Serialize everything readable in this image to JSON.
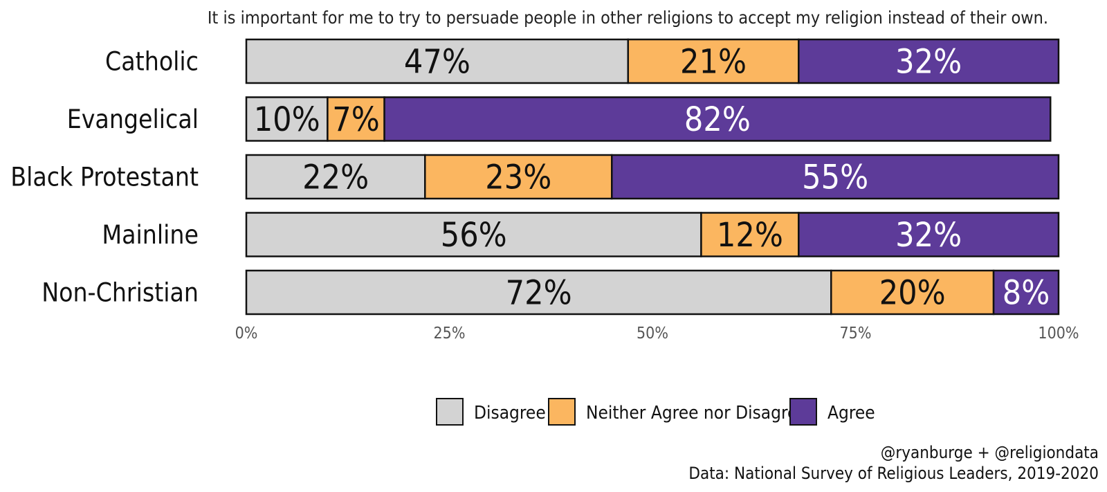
{
  "chart_data": {
    "type": "bar",
    "orientation": "horizontal",
    "stacked": true,
    "title": "It is important for me to try to persuade people in other religions to accept my religion instead of their own.",
    "categories": [
      "Catholic",
      "Evangelical",
      "Black Protestant",
      "Mainline",
      "Non-Christian"
    ],
    "series": [
      {
        "name": "Disagree",
        "color": "#d3d3d3",
        "label_color": "#111111",
        "values": [
          47,
          10,
          22,
          56,
          72
        ]
      },
      {
        "name": "Neither Agree nor Disagree",
        "color": "#fbb660",
        "label_color": "#111111",
        "values": [
          21,
          7,
          23,
          12,
          20
        ]
      },
      {
        "name": "Agree",
        "color": "#5d3b99",
        "label_color": "#ffffff",
        "values": [
          32,
          82,
          55,
          32,
          8
        ]
      }
    ],
    "xlim": [
      0,
      100
    ],
    "x_ticks": [
      "0%",
      "25%",
      "50%",
      "75%",
      "100%"
    ],
    "value_suffix": "%",
    "legend_position": "bottom",
    "grid": false
  },
  "credits": {
    "line1": "@ryanburge + @religiondata",
    "line2": "Data: National Survey of Religious Leaders, 2019-2020"
  }
}
